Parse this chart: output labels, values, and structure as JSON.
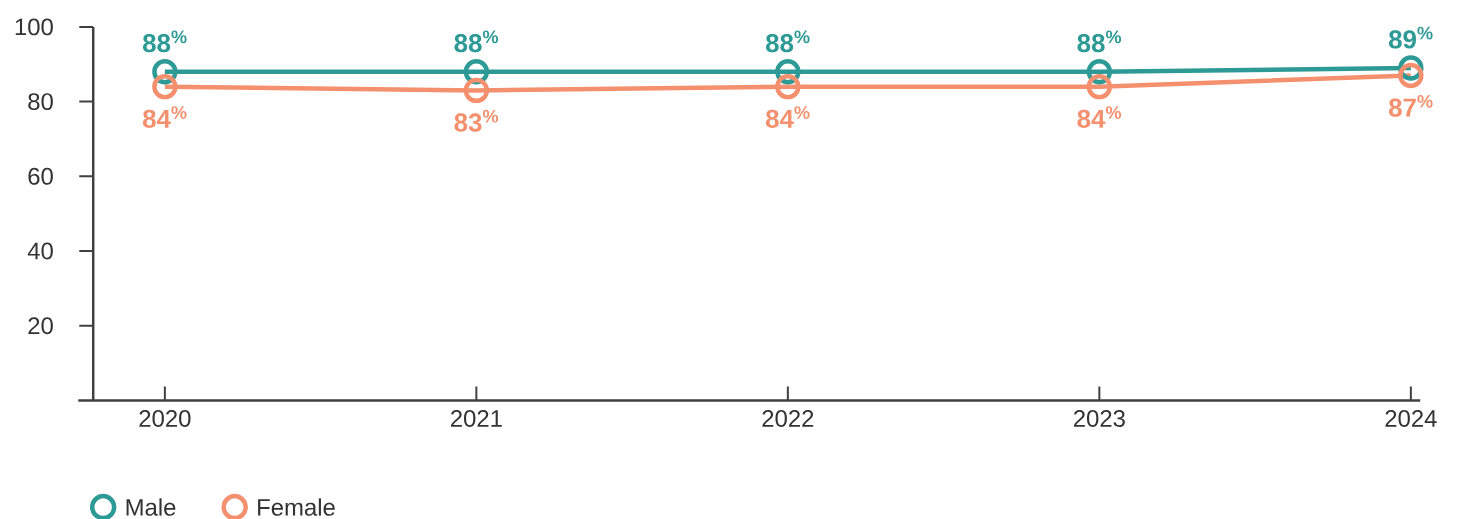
{
  "chart_data": {
    "type": "line",
    "categories": [
      "2020",
      "2021",
      "2022",
      "2023",
      "2024"
    ],
    "series": [
      {
        "name": "Male",
        "color": "#2e9a96",
        "values": [
          88,
          88,
          88,
          88,
          89
        ],
        "value_labels": [
          "88$^{%}$",
          "88$^{%}$",
          "88$^{%}$",
          "88$^{%}$",
          "89$^{%}$"
        ]
      },
      {
        "name": "Female",
        "color": "#f4906d",
        "values": [
          84,
          83,
          84,
          84,
          87
        ],
        "value_labels": [
          "84$^{%}$",
          "83$^{%}$",
          "84$^{%}$",
          "84$^{%}$",
          "87$^{%}$"
        ]
      }
    ],
    "ylim": [
      0,
      100
    ],
    "yticks": [
      20,
      40,
      60,
      80,
      100
    ],
    "marker": "circle",
    "line_style": "solid",
    "grid": false,
    "legend": "bottom left"
  }
}
